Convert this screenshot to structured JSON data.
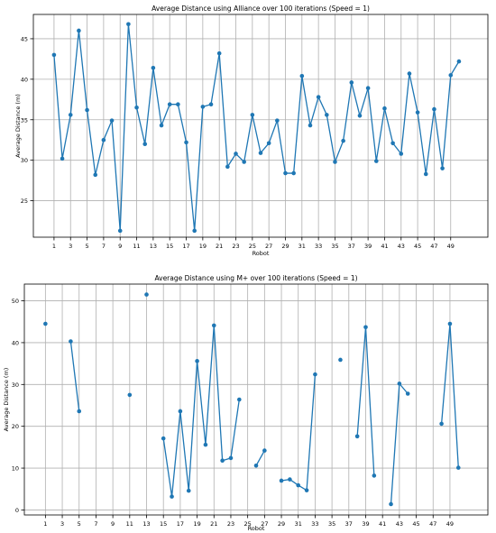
{
  "chart_data": [
    {
      "type": "line",
      "title": "Average Distance using Alliance over 100 iterations (Speed = 1)",
      "xlabel": "Robot",
      "ylabel": "Average Distance (m)",
      "xlim": [
        -1.5,
        53.5
      ],
      "ylim": [
        20.5,
        48.0
      ],
      "xticks": [
        1,
        3,
        5,
        7,
        9,
        11,
        13,
        15,
        17,
        19,
        21,
        23,
        25,
        27,
        29,
        31,
        33,
        35,
        37,
        39,
        41,
        43,
        45,
        47,
        49
      ],
      "yticks": [
        25,
        30,
        35,
        40,
        45
      ],
      "grid": true,
      "color": "#1f77b4",
      "x": [
        1,
        2,
        3,
        4,
        5,
        6,
        7,
        8,
        9,
        10,
        11,
        12,
        13,
        14,
        15,
        16,
        17,
        18,
        19,
        20,
        21,
        22,
        23,
        24,
        25,
        26,
        27,
        28,
        29,
        30,
        31,
        32,
        33,
        34,
        35,
        36,
        37,
        38,
        39,
        40,
        41,
        42,
        43,
        44,
        45,
        46,
        47,
        48,
        49,
        50
      ],
      "values": [
        43.0,
        30.2,
        35.6,
        46.0,
        36.2,
        28.2,
        32.5,
        34.9,
        21.3,
        46.8,
        36.5,
        32.0,
        41.4,
        34.3,
        36.9,
        36.9,
        32.2,
        21.3,
        36.6,
        36.9,
        43.2,
        29.2,
        30.8,
        29.8,
        35.6,
        30.9,
        32.1,
        34.9,
        28.4,
        28.4,
        40.4,
        34.3,
        37.8,
        35.6,
        29.8,
        32.4,
        39.6,
        35.5,
        38.9,
        29.9,
        36.4,
        32.1,
        30.8,
        40.7,
        35.9,
        28.3,
        36.3,
        29.0,
        40.5,
        42.2
      ]
    },
    {
      "type": "line",
      "title": "Average Distance using M+ over 100 iterations (Speed = 1)",
      "xlabel": "Robot",
      "ylabel": "Average Distance (m)",
      "xlim": [
        -1.5,
        53.5
      ],
      "ylim": [
        -1.2,
        54.0
      ],
      "xticks": [
        1,
        3,
        5,
        7,
        9,
        11,
        13,
        15,
        17,
        19,
        21,
        23,
        25,
        27,
        29,
        31,
        33,
        35,
        37,
        39,
        41,
        43,
        45,
        47,
        49
      ],
      "yticks": [
        0,
        10,
        20,
        30,
        40,
        50
      ],
      "grid": true,
      "color": "#1f77b4",
      "x": [
        1,
        2,
        3,
        4,
        5,
        6,
        7,
        8,
        9,
        10,
        11,
        12,
        13,
        14,
        15,
        16,
        17,
        18,
        19,
        20,
        21,
        22,
        23,
        24,
        25,
        26,
        27,
        28,
        29,
        30,
        31,
        32,
        33,
        34,
        35,
        36,
        37,
        38,
        39,
        40,
        41,
        42,
        43,
        44,
        45,
        46,
        47,
        48,
        49,
        50
      ],
      "values": [
        44.5,
        null,
        null,
        40.3,
        23.6,
        null,
        null,
        null,
        null,
        null,
        27.5,
        null,
        51.5,
        null,
        17.1,
        3.2,
        23.6,
        4.6,
        35.6,
        15.6,
        44.1,
        11.8,
        12.4,
        26.4,
        null,
        10.6,
        14.2,
        null,
        7.0,
        7.3,
        5.9,
        4.7,
        32.4,
        null,
        null,
        35.9,
        null,
        17.6,
        43.7,
        8.2,
        null,
        1.4,
        30.2,
        27.8,
        null,
        null,
        null,
        20.6,
        44.5,
        10.1
      ]
    }
  ]
}
